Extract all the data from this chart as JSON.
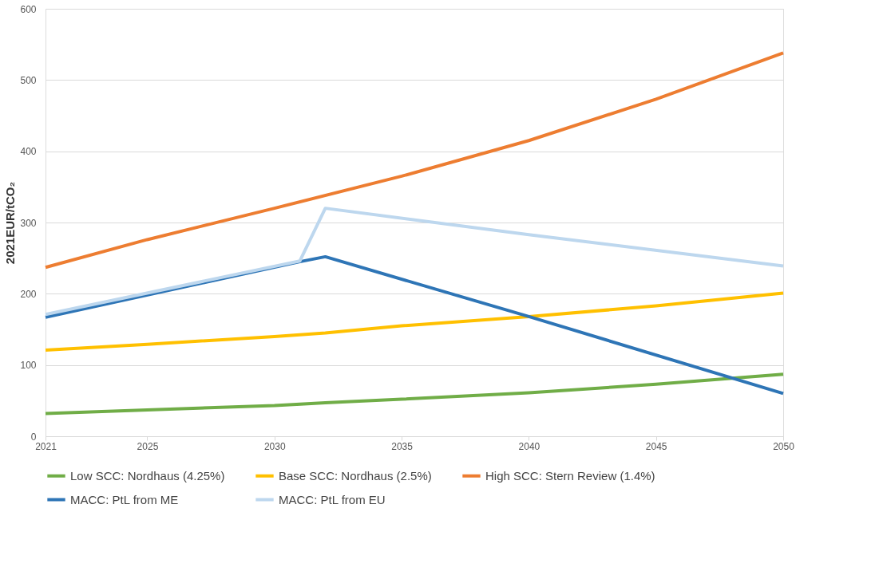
{
  "chart_data": {
    "type": "line",
    "ylabel": "2021EUR/tCO₂",
    "series": [
      {
        "name": "Low SCC: Nordhaus (4.25%)",
        "color": "#70ad47",
        "x": [
          2021,
          2025,
          2030,
          2032,
          2035,
          2040,
          2045,
          2050
        ],
        "values": [
          32,
          37,
          43,
          47,
          52,
          61,
          73,
          87
        ]
      },
      {
        "name": "Base SCC: Nordhaus (2.5%)",
        "color": "#ffc000",
        "x": [
          2021,
          2025,
          2030,
          2032,
          2035,
          2040,
          2045,
          2050
        ],
        "values": [
          121,
          129,
          140,
          145,
          155,
          168,
          183,
          201
        ]
      },
      {
        "name": "High SCC: Stern Review (1.4%)",
        "color": "#ed7d31",
        "x": [
          2021,
          2025,
          2030,
          2035,
          2040,
          2045,
          2050
        ],
        "values": [
          237,
          276,
          320,
          365,
          415,
          473,
          538
        ]
      },
      {
        "name": "MACC: PtL from ME",
        "color": "#2e75b6",
        "x": [
          2021,
          2031,
          2032,
          2040,
          2050
        ],
        "values": [
          167,
          245,
          252,
          168,
          60
        ]
      },
      {
        "name": "MACC: PtL from EU",
        "color": "#bdd7ee",
        "x": [
          2021,
          2031,
          2032,
          2040,
          2050
        ],
        "values": [
          171,
          246,
          320,
          283,
          239
        ]
      }
    ],
    "xlim": [
      2021,
      2050
    ],
    "xticks": [
      2021,
      2025,
      2030,
      2035,
      2040,
      2045,
      2050
    ],
    "ylim": [
      0,
      600
    ],
    "yticks": [
      0,
      100,
      200,
      300,
      400,
      500,
      600
    ],
    "grid": "y",
    "legend": "bottom",
    "marker": "none",
    "line_style": "solid"
  }
}
